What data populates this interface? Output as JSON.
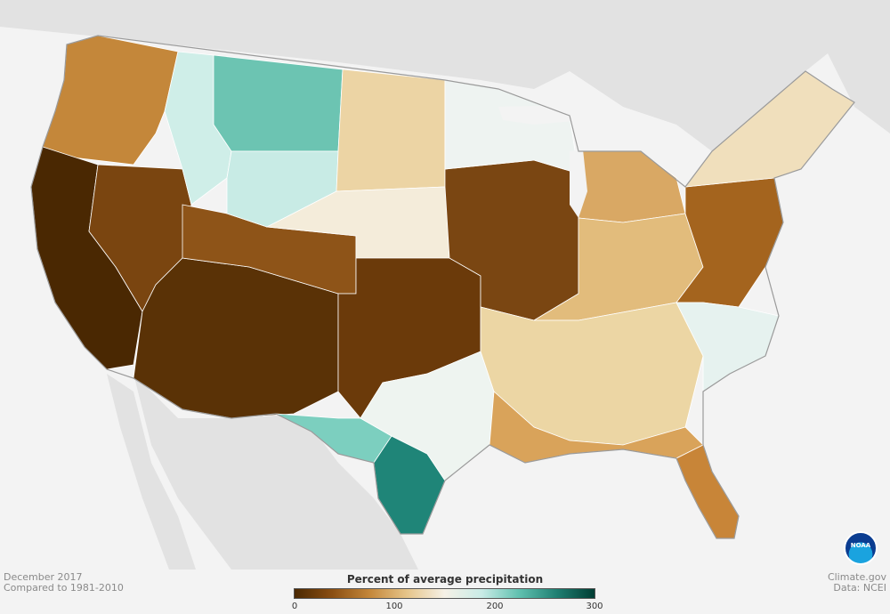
{
  "footer": {
    "month": "December 2017",
    "baseline": "Compared to 1981-2010",
    "source_site": "Climate.gov",
    "data_source": "Data: NCEI"
  },
  "legend": {
    "title": "Percent of average precipitation",
    "ticks": [
      "0",
      "100",
      "200",
      "300"
    ],
    "colors": [
      "#4a2802",
      "#8a4e12",
      "#c4873a",
      "#e6c58a",
      "#f6f1e6",
      "#c8ebe6",
      "#5fc0af",
      "#1f7f72",
      "#003d33"
    ]
  },
  "logo": {
    "text": "NOAA"
  },
  "map": {
    "background_land": "#e4e4e4",
    "ocean": "#f3f3f3",
    "regions": [
      {
        "name": "pacific-northwest",
        "color": "#c4873a"
      },
      {
        "name": "california",
        "color": "#4a2802"
      },
      {
        "name": "great-basin",
        "color": "#7a4510"
      },
      {
        "name": "southwest",
        "color": "#5a3206"
      },
      {
        "name": "colorado-utah",
        "color": "#8e5418"
      },
      {
        "name": "northern-rockies",
        "color": "#cfeee8"
      },
      {
        "name": "montana",
        "color": "#6cc4b2"
      },
      {
        "name": "wyoming",
        "color": "#c8ebe5"
      },
      {
        "name": "northern-plains",
        "color": "#ecd4a4"
      },
      {
        "name": "central-plains",
        "color": "#f4ecda"
      },
      {
        "name": "southern-plains",
        "color": "#6b3a0a"
      },
      {
        "name": "west-texas",
        "color": "#7ccfbf"
      },
      {
        "name": "south-texas",
        "color": "#1f8578"
      },
      {
        "name": "east-texas",
        "color": "#eef4f0"
      },
      {
        "name": "midwest",
        "color": "#7a4612"
      },
      {
        "name": "upper-midwest",
        "color": "#eef3f1"
      },
      {
        "name": "great-lakes",
        "color": "#d9a864"
      },
      {
        "name": "ohio-valley",
        "color": "#e2bc7c"
      },
      {
        "name": "mid-atlantic",
        "color": "#a4641e"
      },
      {
        "name": "northeast",
        "color": "#f0dfbc"
      },
      {
        "name": "southeast",
        "color": "#ecd6a4"
      },
      {
        "name": "carolinas",
        "color": "#e6f2ef"
      },
      {
        "name": "gulf-coast",
        "color": "#d9a35a"
      },
      {
        "name": "florida",
        "color": "#c88538"
      }
    ]
  }
}
